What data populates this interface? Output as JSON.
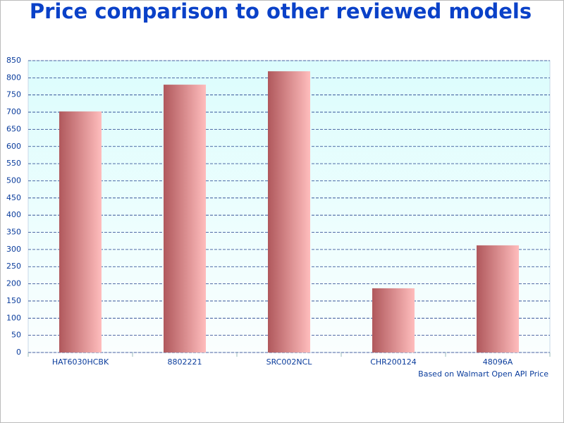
{
  "chart_data": {
    "type": "bar",
    "title": "Price comparison to other reviewed models",
    "note": "Based on Walmart Open API Price",
    "categories": [
      "HAT6030HCBK",
      "8802221",
      "SRC002NCL",
      "CHR200124",
      "48096A"
    ],
    "values": [
      702,
      780,
      819,
      187,
      312
    ],
    "gradient": [
      "#b0585c",
      "#ffbdbd"
    ],
    "ylim": [
      0,
      850
    ],
    "yticks": [
      0,
      50,
      100,
      150,
      200,
      250,
      300,
      350,
      400,
      450,
      500,
      550,
      600,
      650,
      700,
      750,
      800,
      850
    ],
    "grid": true
  }
}
